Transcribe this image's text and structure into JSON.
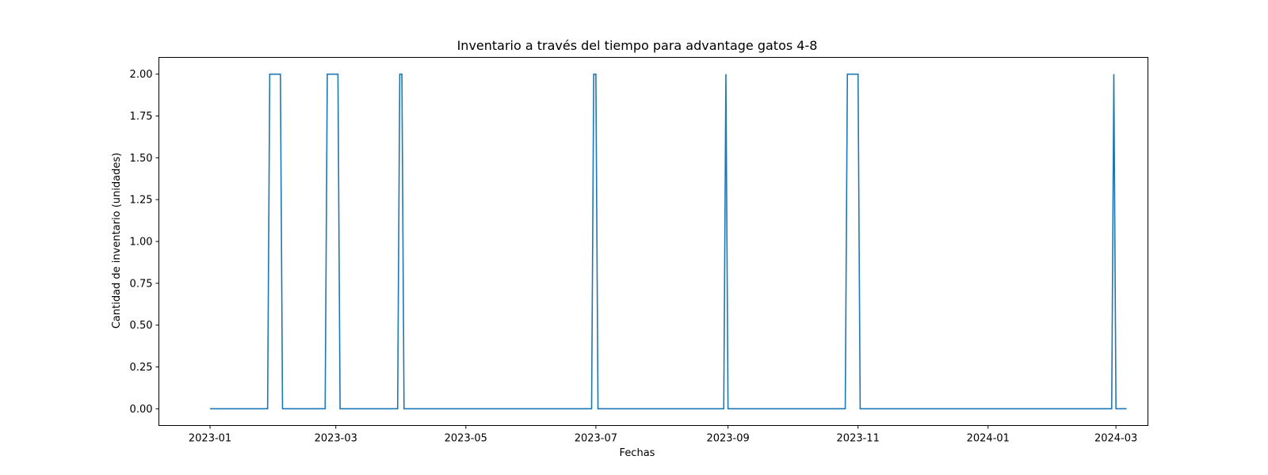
{
  "chart_data": {
    "type": "line",
    "title": "Inventario a través del tiempo para advantage gatos  4-8",
    "xlabel": "Fechas",
    "ylabel": "Cantidad de inventario (unidades)",
    "xlim": [
      "2022-12-08",
      "2024-03-16"
    ],
    "ylim": [
      -0.1,
      2.1
    ],
    "grid": false,
    "x_ticks": [
      "2023-01",
      "2023-03",
      "2023-05",
      "2023-07",
      "2023-09",
      "2023-11",
      "2024-01",
      "2024-03"
    ],
    "y_ticks": [
      "0.00",
      "0.25",
      "0.50",
      "0.75",
      "1.00",
      "1.25",
      "1.50",
      "1.75",
      "2.00"
    ],
    "series": [
      {
        "color": "#1f77b4",
        "x": [
          "2023-01-01",
          "2023-01-28",
          "2023-01-29",
          "2023-02-03",
          "2023-02-04",
          "2023-02-24",
          "2023-02-25",
          "2023-03-02",
          "2023-03-03",
          "2023-03-30",
          "2023-03-31",
          "2023-04-01",
          "2023-04-02",
          "2023-06-29",
          "2023-06-30",
          "2023-07-01",
          "2023-07-02",
          "2023-08-30",
          "2023-08-31",
          "2023-09-01",
          "2023-10-26",
          "2023-10-27",
          "2023-11-01",
          "2023-11-02",
          "2024-02-28",
          "2024-02-29",
          "2024-03-01",
          "2024-03-06"
        ],
        "y": [
          0,
          0,
          2,
          2,
          0,
          0,
          2,
          2,
          0,
          0,
          2,
          2,
          0,
          0,
          2,
          2,
          0,
          0,
          2,
          0,
          0,
          2,
          2,
          0,
          0,
          2,
          0,
          0
        ]
      }
    ]
  }
}
